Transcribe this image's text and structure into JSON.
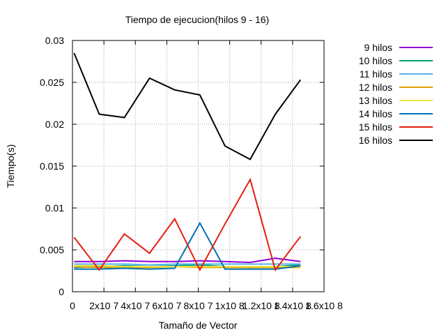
{
  "chart_data": {
    "type": "line",
    "title": "Tiempo de ejecucion(hilos 9 - 16)",
    "xlabel": "Tamaño de Vector",
    "ylabel": "Tiempo(s)",
    "xlim": [
      0,
      160000000
    ],
    "ylim": [
      0,
      0.03
    ],
    "grid": true,
    "legend_position": "right-outside",
    "x_ticks": [
      {
        "value": 0,
        "label": "0"
      },
      {
        "value": 20000000,
        "label": "2x10 7"
      },
      {
        "value": 40000000,
        "label": "4x10 7"
      },
      {
        "value": 60000000,
        "label": "6x10 7"
      },
      {
        "value": 80000000,
        "label": "8x10 7"
      },
      {
        "value": 100000000,
        "label": "1x10 8"
      },
      {
        "value": 120000000,
        "label": "1.2x10 8"
      },
      {
        "value": 140000000,
        "label": "1.4x10 8"
      },
      {
        "value": 160000000,
        "label": "1.6x10 8"
      }
    ],
    "y_ticks": [
      {
        "value": 0,
        "label": "0"
      },
      {
        "value": 0.005,
        "label": "0.005"
      },
      {
        "value": 0.01,
        "label": "0.01"
      },
      {
        "value": 0.015,
        "label": "0.015"
      },
      {
        "value": 0.02,
        "label": "0.02"
      },
      {
        "value": 0.025,
        "label": "0.025"
      },
      {
        "value": 0.03,
        "label": "0.03"
      }
    ],
    "x": [
      1000000,
      17000000,
      33000000,
      49000000,
      65000000,
      81000000,
      97000000,
      113000000,
      129000000,
      145000000
    ],
    "series": [
      {
        "name": "9 hilos",
        "color": "#9400d3",
        "values": [
          0.0036,
          0.0036,
          0.0037,
          0.0036,
          0.0036,
          0.0037,
          0.0036,
          0.0035,
          0.004,
          0.0036
        ]
      },
      {
        "name": "10 hilos",
        "color": "#009e73",
        "values": [
          0.0029,
          0.003,
          0.0031,
          0.003,
          0.0031,
          0.0032,
          0.003,
          0.0029,
          0.003,
          0.0032
        ]
      },
      {
        "name": "11 hilos",
        "color": "#56b4e9",
        "values": [
          0.0033,
          0.0033,
          0.0033,
          0.0032,
          0.0033,
          0.0033,
          0.0033,
          0.0033,
          0.0033,
          0.0033
        ]
      },
      {
        "name": "12 hilos",
        "color": "#e69f00",
        "values": [
          0.003,
          0.0029,
          0.0029,
          0.0029,
          0.003,
          0.0029,
          0.0029,
          0.0029,
          0.0029,
          0.0029
        ]
      },
      {
        "name": "13 hilos",
        "color": "#f0e442",
        "values": [
          0.0031,
          0.0031,
          0.003,
          0.003,
          0.003,
          0.003,
          0.003,
          0.003,
          0.003,
          0.003
        ]
      },
      {
        "name": "14 hilos",
        "color": "#0072b2",
        "values": [
          0.0027,
          0.0027,
          0.0028,
          0.0027,
          0.0028,
          0.0082,
          0.0027,
          0.0027,
          0.0027,
          0.0031
        ]
      },
      {
        "name": "15 hilos",
        "color": "#e51e10",
        "values": [
          0.0065,
          0.0026,
          0.0069,
          0.0046,
          0.0087,
          0.0026,
          0.0081,
          0.0134,
          0.0026,
          0.0066
        ]
      },
      {
        "name": "16 hilos",
        "color": "#000000",
        "values": [
          0.0285,
          0.0212,
          0.0208,
          0.0255,
          0.0241,
          0.0235,
          0.0174,
          0.0158,
          0.0212,
          0.0253
        ]
      }
    ]
  }
}
